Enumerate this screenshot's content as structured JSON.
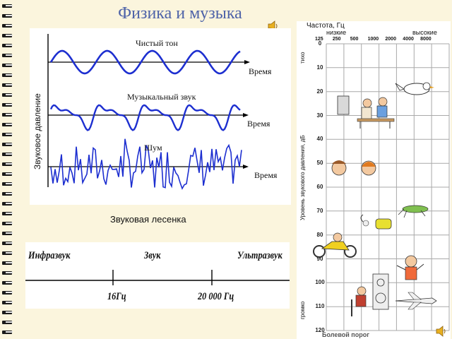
{
  "slide": {
    "title": "Физика и музыка",
    "speaker_icon": "speaker-icon"
  },
  "waves": {
    "y_axis_label": "Звуковое давление",
    "pure_tone": {
      "label": "Чистый тон",
      "axis_label": "Время"
    },
    "musical_sound": {
      "label": "Музыкальный звук",
      "axis_label": "Время"
    },
    "noise": {
      "label": "Шум",
      "axis_label": "Время"
    }
  },
  "ladder": {
    "title": "Звуковая лесенка",
    "infrasound": "Инфразвук",
    "sound": "Звук",
    "ultrasound": "Ультразвук",
    "low_bound": "16Гц",
    "high_bound": "20 000 Гц"
  },
  "loudness": {
    "frequency_title": "Частота, Гц",
    "low_label": "низкие",
    "high_label": "высокие",
    "frequencies": [
      "125",
      "250",
      "500",
      "1000",
      "2000",
      "4000",
      "8000"
    ],
    "db_axis_title": "Уровень звукового давления, дБ",
    "quiet_label": "тихо",
    "loud_label": "громко",
    "db_ticks": [
      "0",
      "10",
      "20",
      "30",
      "40",
      "50",
      "60",
      "70",
      "80",
      "90",
      "100",
      "110",
      "120"
    ],
    "pain_threshold": "Болевой порог"
  },
  "colors": {
    "background": "#fbf5dd",
    "title": "#4d62a8",
    "wave": "#1d2fd0",
    "grid": "#a9a9a9"
  }
}
